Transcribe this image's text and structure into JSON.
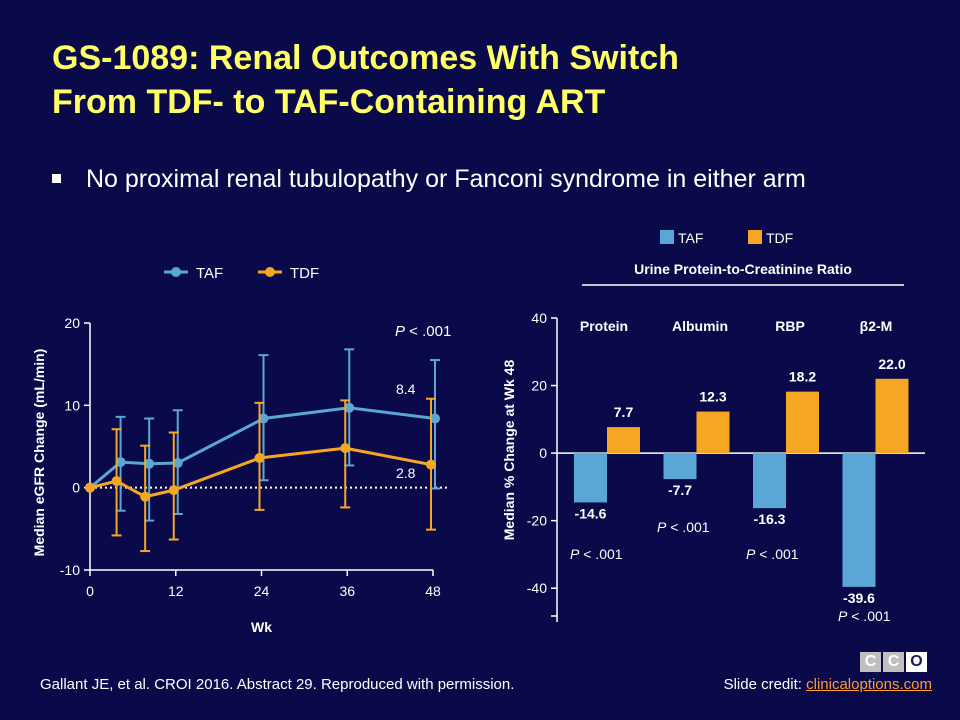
{
  "slide": {
    "title_line1": "GS-1089: Renal Outcomes With Switch",
    "title_line2": "From TDF- to TAF-Containing ART",
    "bullet": "No proximal renal tubulopathy or Fanconi syndrome in either arm",
    "citation": "Gallant JE, et al. CROI 2016. Abstract 29. Reproduced with permission.",
    "credit_prefix": "Slide credit: ",
    "credit_link": "clinicaloptions.com",
    "logo_letters": [
      "C",
      "C",
      "O"
    ]
  },
  "colors": {
    "background": "#0a0a4a",
    "title": "#ffff66",
    "taf": "#5aa6d6",
    "tdf": "#f5a623",
    "link": "#ff9933"
  },
  "chart_data": [
    {
      "type": "line",
      "xlabel": "Wk",
      "ylabel": "Median eGFR Change (mL/min)",
      "xlim": [
        0,
        48
      ],
      "ylim": [
        -10,
        20
      ],
      "xticks": [
        0,
        12,
        24,
        36,
        48
      ],
      "yticks": [
        -10,
        0,
        10,
        20
      ],
      "legend_position": "top",
      "reference_line": 0,
      "annotations": {
        "p_prefix": "P",
        "p_value": " < .001",
        "taf_end_label": "8.4",
        "tdf_end_label": "2.8"
      },
      "series": [
        {
          "name": "TAF",
          "color": "#5aa6d6",
          "x": [
            0,
            4,
            8,
            12,
            24,
            36,
            48
          ],
          "y": [
            0,
            3.1,
            2.9,
            3.0,
            8.4,
            9.7,
            8.4
          ],
          "err_low": [
            0,
            -2.8,
            -4.0,
            -3.2,
            0.9,
            2.7,
            -0.1
          ],
          "err_high": [
            0,
            8.6,
            8.4,
            9.4,
            16.1,
            16.8,
            15.5
          ]
        },
        {
          "name": "TDF",
          "color": "#f5a623",
          "x": [
            0,
            4,
            8,
            12,
            24,
            36,
            48
          ],
          "y": [
            0,
            0.8,
            -1.1,
            -0.3,
            3.6,
            4.8,
            2.8
          ],
          "err_low": [
            0,
            -5.8,
            -7.7,
            -6.3,
            -2.7,
            -2.4,
            -5.1
          ],
          "err_high": [
            0,
            7.1,
            5.1,
            6.7,
            10.3,
            10.6,
            10.8
          ]
        }
      ]
    },
    {
      "type": "bar",
      "title": "Urine Protein-to-Creatinine Ratio",
      "ylabel": "Median % Change at Wk 48",
      "categories": [
        "Protein",
        "Albumin",
        "RBP",
        "β2-M"
      ],
      "ylim": [
        -50,
        40
      ],
      "yticks": [
        -40,
        -20,
        0,
        20,
        40
      ],
      "legend_position": "top",
      "series": [
        {
          "name": "TAF",
          "color": "#5aa6d6",
          "values": [
            -14.6,
            -7.7,
            -16.3,
            -39.6
          ]
        },
        {
          "name": "TDF",
          "color": "#f5a623",
          "values": [
            7.7,
            12.3,
            18.2,
            22.0
          ]
        }
      ],
      "value_labels": {
        "TAF": [
          "-14.6",
          "-7.7",
          "-16.3",
          "-39.6"
        ],
        "TDF": [
          "7.7",
          "12.3",
          "18.2",
          "22.0"
        ]
      },
      "p_values": [
        {
          "category": "Protein",
          "prefix": "P",
          "value": " < .001"
        },
        {
          "category": "Albumin",
          "prefix": "P",
          "value": " < .001"
        },
        {
          "category": "RBP",
          "prefix": "P",
          "value": " < .001"
        },
        {
          "category": "β2-M",
          "prefix": "P",
          "value": " < .001"
        }
      ]
    }
  ]
}
